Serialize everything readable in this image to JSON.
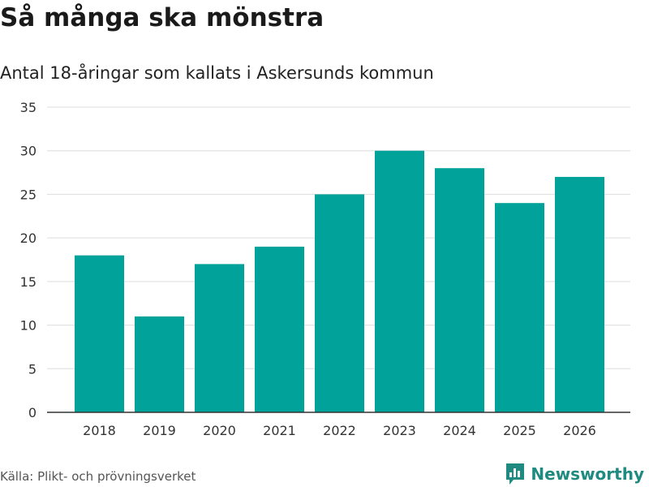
{
  "title": "Så många ska mönstra",
  "subtitle": "Antal 18-åringar som kallats i Askersunds kommun",
  "source": "Källa: Plikt- och prövningsverket",
  "brand": "Newsworthy",
  "colors": {
    "bar": "#00a29a",
    "grid": "#dddddd",
    "axis": "#333333",
    "brand": "#1f8a80"
  },
  "chart_data": {
    "type": "bar",
    "title": "Så många ska mönstra",
    "subtitle": "Antal 18-åringar som kallats i Askersunds kommun",
    "xlabel": "",
    "ylabel": "",
    "categories": [
      "2018",
      "2019",
      "2020",
      "2021",
      "2022",
      "2023",
      "2024",
      "2025",
      "2026"
    ],
    "values": [
      18,
      11,
      17,
      19,
      25,
      30,
      28,
      24,
      27
    ],
    "ylim": [
      0,
      35
    ],
    "yticks": [
      0,
      5,
      10,
      15,
      20,
      25,
      30,
      35
    ],
    "grid": true
  }
}
